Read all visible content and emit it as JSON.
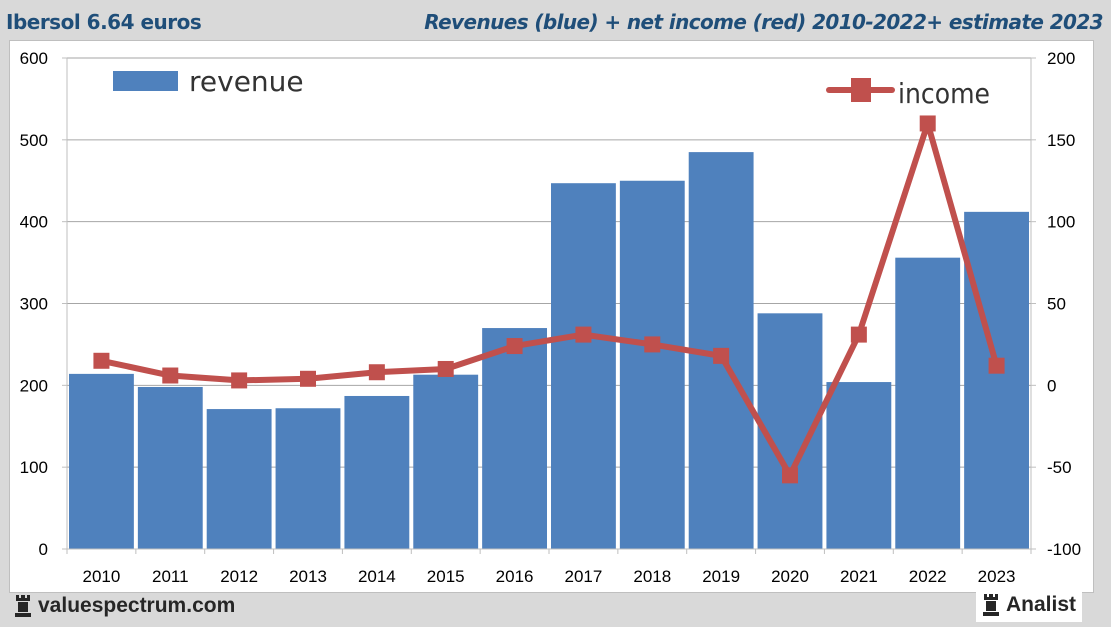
{
  "header": {
    "title_left": "Ibersol 6.64 euros",
    "title_right": "Revenues (blue) + net income (red) 2010-2022+ estimate 2023"
  },
  "footer": {
    "brand_left": "valuespectrum.com",
    "brand_right": "Analist",
    "brand_icon": "rook-icon"
  },
  "colors": {
    "bar": "#4f81bd",
    "line": "#c0504d",
    "title": "#1f4e79"
  },
  "chart_data": {
    "type": "bar+line",
    "title": "Revenues (blue) + net income (red) 2010-2022+ estimate 2023",
    "categories": [
      "2010",
      "2011",
      "2012",
      "2013",
      "2014",
      "2015",
      "2016",
      "2017",
      "2018",
      "2019",
      "2020",
      "2021",
      "2022",
      "2023"
    ],
    "series": [
      {
        "name": "revenue",
        "type": "bar",
        "axis": "left",
        "values": [
          214,
          198,
          171,
          172,
          187,
          213,
          270,
          447,
          450,
          485,
          288,
          204,
          356,
          412
        ]
      },
      {
        "name": "income",
        "type": "line",
        "axis": "right",
        "values": [
          15,
          6,
          3,
          4,
          8,
          10,
          24,
          31,
          25,
          18,
          -55,
          31,
          160,
          12
        ]
      }
    ],
    "y_left": {
      "min": 0,
      "max": 600,
      "ticks": [
        "0",
        "100",
        "200",
        "300",
        "400",
        "500",
        "600"
      ]
    },
    "y_right": {
      "min": -100,
      "max": 200,
      "ticks": [
        "-100",
        "-50",
        "0",
        "50",
        "100",
        "150",
        "200"
      ]
    },
    "grid": true,
    "legend": [
      {
        "label": "revenue",
        "placement": "top-left"
      },
      {
        "label": "income",
        "placement": "top-right"
      }
    ]
  }
}
